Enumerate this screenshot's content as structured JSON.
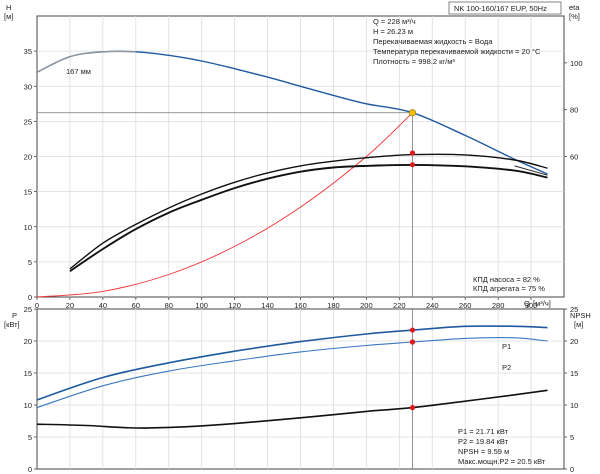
{
  "chart_data": [
    {
      "type": "line",
      "title": "NK 100-160/167 EUP, 50Hz",
      "y_left_label": "H",
      "y_left_unit": "[м]",
      "y_right_label": "eta",
      "y_right_unit": "[%]",
      "x_label": "Q",
      "x_unit": "[м³/ч]",
      "xlim": [
        0,
        320
      ],
      "ylim_left": [
        0,
        40
      ],
      "ylim_right": [
        0,
        120
      ],
      "x_ticks": [
        0,
        20,
        40,
        60,
        80,
        100,
        120,
        140,
        160,
        180,
        200,
        220,
        240,
        260,
        280,
        300
      ],
      "y_left_ticks": [
        0,
        5,
        10,
        15,
        20,
        25,
        30,
        35
      ],
      "y_right_ticks": [
        60,
        80,
        100
      ],
      "grid": true,
      "operating_point": {
        "q": 228,
        "h": 26.23
      },
      "info_lines": [
        "Q = 228 м³/ч",
        "H = 26.23 м",
        "Перекачиваемая жидкость = Вода",
        "Температура перекачиваемой жидкости = 20 °C",
        "Плотность = 998.2 кг/м³"
      ],
      "eff_lines": [
        "КПД насоса = 82 %",
        "КПД агрегата = 75 %"
      ],
      "series": [
        {
          "name": "167 мм",
          "axis": "left",
          "color": "#1f5aa0",
          "x": [
            0,
            20,
            40,
            60,
            80,
            100,
            120,
            140,
            160,
            180,
            200,
            228,
            260,
            290,
            310
          ],
          "y": [
            32.0,
            34.2,
            34.9,
            34.9,
            34.4,
            33.6,
            32.5,
            31.3,
            30.0,
            28.7,
            27.5,
            26.23,
            23.0,
            19.6,
            17.5
          ]
        },
        {
          "axis": "left",
          "color": "#9a9a9a",
          "x": [
            0,
            20,
            40,
            60
          ],
          "y": [
            32.0,
            34.2,
            34.9,
            34.9
          ]
        },
        {
          "axis": "left",
          "color": "#ee3333",
          "x": [
            0,
            40,
            80,
            120,
            160,
            200,
            228
          ],
          "y": [
            0,
            0.8,
            3.2,
            7.2,
            12.8,
            20.0,
            26.23
          ]
        },
        {
          "axis": "right",
          "color": "#111111",
          "x": [
            20,
            40,
            60,
            80,
            100,
            120,
            140,
            160,
            180,
            200,
            228,
            260,
            290,
            310
          ],
          "y": [
            12,
            23,
            31,
            38,
            44,
            49,
            53,
            56,
            58,
            59.5,
            60.8,
            60.7,
            58.5,
            55
          ]
        },
        {
          "axis": "right",
          "color": "#111111",
          "x": [
            20,
            40,
            60,
            80,
            100,
            120,
            140,
            160,
            180,
            200,
            228,
            260,
            290,
            310
          ],
          "y": [
            11,
            20.5,
            29,
            36,
            41.5,
            46.5,
            50.5,
            53.5,
            55.3,
            56,
            56.4,
            55.8,
            54,
            51
          ]
        },
        {
          "axis": "right",
          "color": "#222222",
          "x": [
            290,
            310
          ],
          "y": [
            56,
            52
          ]
        }
      ],
      "points": [
        {
          "x": 228,
          "y": 26.23,
          "axis": "left",
          "color": "#f2c200"
        },
        {
          "x": 228,
          "y": 61.5,
          "axis": "right",
          "color": "#e01818"
        },
        {
          "x": 228,
          "y": 56.5,
          "axis": "right",
          "color": "#e01818"
        }
      ]
    },
    {
      "type": "line",
      "y_left_label": "P",
      "y_left_unit": "[кВт]",
      "y_right_label": "NPSH",
      "y_right_unit": "[м]",
      "xlim": [
        0,
        320
      ],
      "ylim_left": [
        0,
        25
      ],
      "ylim_right": [
        0,
        25
      ],
      "y_left_ticks": [
        0,
        5,
        10,
        15,
        20,
        25
      ],
      "y_right_ticks": [
        0,
        5,
        10,
        15,
        20,
        25
      ],
      "grid": true,
      "info_lines": [
        "P1 = 21.71 кВт",
        "P2 = 19.84 кВт",
        "NPSH = 9.59 м",
        "Макс.мощн.P2 = 20.5 кВт"
      ],
      "series": [
        {
          "name": "P1",
          "axis": "left",
          "color": "#1f5aa0",
          "x": [
            0,
            40,
            80,
            120,
            160,
            200,
            228,
            260,
            290,
            310
          ],
          "y": [
            10.8,
            14.3,
            16.6,
            18.4,
            19.9,
            21.1,
            21.71,
            22.3,
            22.3,
            22.1
          ]
        },
        {
          "name": "P2",
          "axis": "left",
          "color": "#3a78c0",
          "x": [
            0,
            40,
            80,
            120,
            160,
            200,
            228,
            260,
            290,
            310
          ],
          "y": [
            9.6,
            13.0,
            15.3,
            16.9,
            18.3,
            19.3,
            19.84,
            20.4,
            20.5,
            20.0
          ]
        },
        {
          "name": "NPSH",
          "axis": "right",
          "color": "#111111",
          "x": [
            0,
            30,
            60,
            90,
            120,
            160,
            200,
            228,
            260,
            290,
            310
          ],
          "y": [
            7.0,
            6.8,
            6.4,
            6.6,
            7.1,
            8.0,
            9.0,
            9.59,
            10.6,
            11.6,
            12.3
          ]
        }
      ],
      "points": [
        {
          "x": 228,
          "y": 21.71,
          "axis": "left",
          "color": "#e01818"
        },
        {
          "x": 228,
          "y": 19.84,
          "axis": "left",
          "color": "#e01818"
        },
        {
          "x": 228,
          "y": 9.59,
          "axis": "right",
          "color": "#e01818"
        }
      ]
    }
  ]
}
